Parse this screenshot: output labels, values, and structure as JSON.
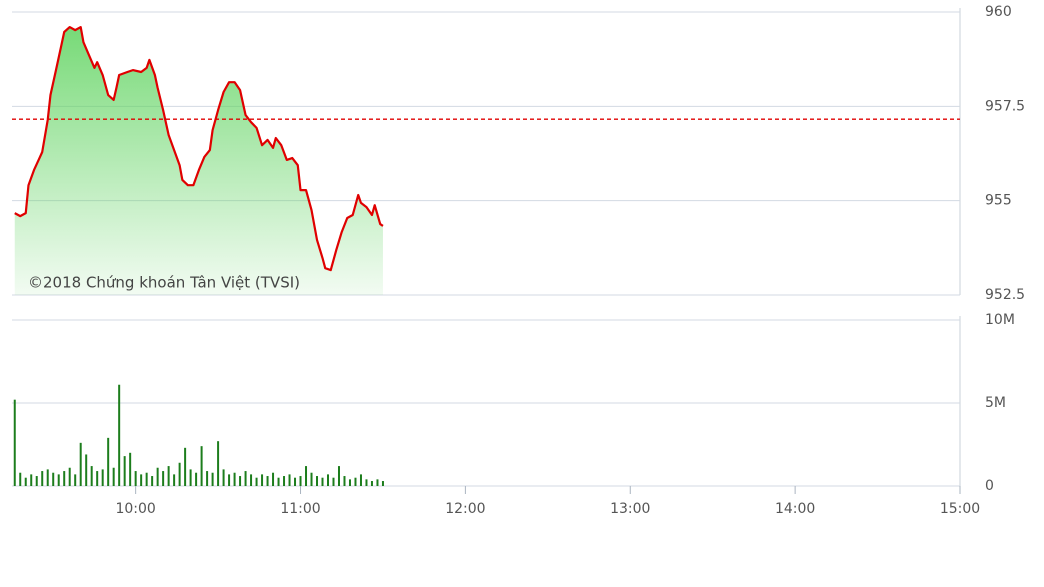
{
  "chart_data": [
    {
      "type": "line",
      "x": [
        556,
        558,
        560,
        561,
        563,
        565,
        566,
        568,
        569,
        571,
        573,
        574,
        576,
        578,
        580,
        581,
        583,
        585,
        586,
        588,
        590,
        592,
        593,
        594,
        597,
        599,
        602,
        604,
        605,
        607,
        608,
        610,
        612,
        614,
        616,
        617,
        619,
        621,
        623,
        625,
        627,
        628,
        630,
        632,
        634,
        636,
        638,
        640,
        642,
        644,
        646,
        648,
        650,
        651,
        653,
        655,
        657,
        659,
        660,
        662,
        664,
        666,
        668,
        669,
        671,
        673,
        675,
        677,
        679,
        681,
        682,
        684,
        686,
        687,
        689,
        690
      ],
      "series": [
        {
          "color": "#e00000",
          "values": [
            954.67,
            954.59,
            954.67,
            955.41,
            955.81,
            956.13,
            956.29,
            957.14,
            957.8,
            958.46,
            959.13,
            959.47,
            959.6,
            959.52,
            959.6,
            959.2,
            958.86,
            958.52,
            958.67,
            958.33,
            957.8,
            957.67,
            957.99,
            958.33,
            958.41,
            958.46,
            958.41,
            958.52,
            958.73,
            958.33,
            957.99,
            957.4,
            956.74,
            956.34,
            955.94,
            955.55,
            955.41,
            955.41,
            955.81,
            956.16,
            956.34,
            956.87,
            957.4,
            957.88,
            958.14,
            958.14,
            957.93,
            957.27,
            957.08,
            956.93,
            956.47,
            956.61,
            956.4,
            956.66,
            956.47,
            956.08,
            956.13,
            955.94,
            955.28,
            955.28,
            954.75,
            953.96,
            953.48,
            953.21,
            953.16,
            953.69,
            954.17,
            954.54,
            954.62,
            955.15,
            954.94,
            954.83,
            954.62,
            954.88,
            954.38,
            954.33
          ]
        }
      ],
      "area_color": "#5fd35f",
      "reference_line": {
        "value": 957.16,
        "color": "#e00000"
      },
      "annotation": "©2018 Chứng khoán Tân Việt (TVSI)",
      "xlim": [
        555,
        900
      ],
      "ylim": [
        952.5,
        960
      ],
      "yticks": [
        952.5,
        955,
        957.5,
        960
      ],
      "grid": true
    },
    {
      "type": "bar",
      "x": [
        556,
        558,
        560,
        562,
        564,
        566,
        568,
        570,
        572,
        574,
        576,
        578,
        580,
        582,
        584,
        586,
        588,
        590,
        592,
        594,
        596,
        598,
        600,
        602,
        604,
        606,
        608,
        610,
        612,
        614,
        616,
        618,
        620,
        622,
        624,
        626,
        628,
        630,
        632,
        634,
        636,
        638,
        640,
        642,
        644,
        646,
        648,
        650,
        652,
        654,
        656,
        658,
        660,
        662,
        664,
        666,
        668,
        670,
        672,
        674,
        676,
        678,
        680,
        682,
        684,
        686,
        688,
        690
      ],
      "values": [
        5200000,
        800000,
        500000,
        700000,
        600000,
        900000,
        1000000,
        800000,
        700000,
        900000,
        1100000,
        700000,
        2600000,
        1900000,
        1200000,
        900000,
        1000000,
        2900000,
        1100000,
        6100000,
        1800000,
        2000000,
        900000,
        700000,
        800000,
        600000,
        1100000,
        900000,
        1200000,
        700000,
        1400000,
        2300000,
        1000000,
        800000,
        2400000,
        900000,
        800000,
        2700000,
        1000000,
        700000,
        800000,
        600000,
        900000,
        700000,
        500000,
        700000,
        600000,
        800000,
        500000,
        600000,
        700000,
        500000,
        600000,
        1200000,
        800000,
        600000,
        500000,
        700000,
        500000,
        1200000,
        600000,
        400000,
        500000,
        700000,
        400000,
        300000,
        400000,
        300000
      ],
      "color": "#1c7d1c",
      "xlim": [
        555,
        900
      ],
      "xticks": [
        {
          "value": 600,
          "label": "10:00"
        },
        {
          "value": 660,
          "label": "11:00"
        },
        {
          "value": 720,
          "label": "12:00"
        },
        {
          "value": 780,
          "label": "13:00"
        },
        {
          "value": 840,
          "label": "14:00"
        },
        {
          "value": 900,
          "label": "15:00"
        }
      ],
      "ylim": [
        0,
        10000000
      ],
      "yticks": [
        {
          "value": 0,
          "label": "0"
        },
        {
          "value": 5000000,
          "label": "5M"
        },
        {
          "value": 10000000,
          "label": "10M"
        }
      ],
      "grid": true
    }
  ]
}
